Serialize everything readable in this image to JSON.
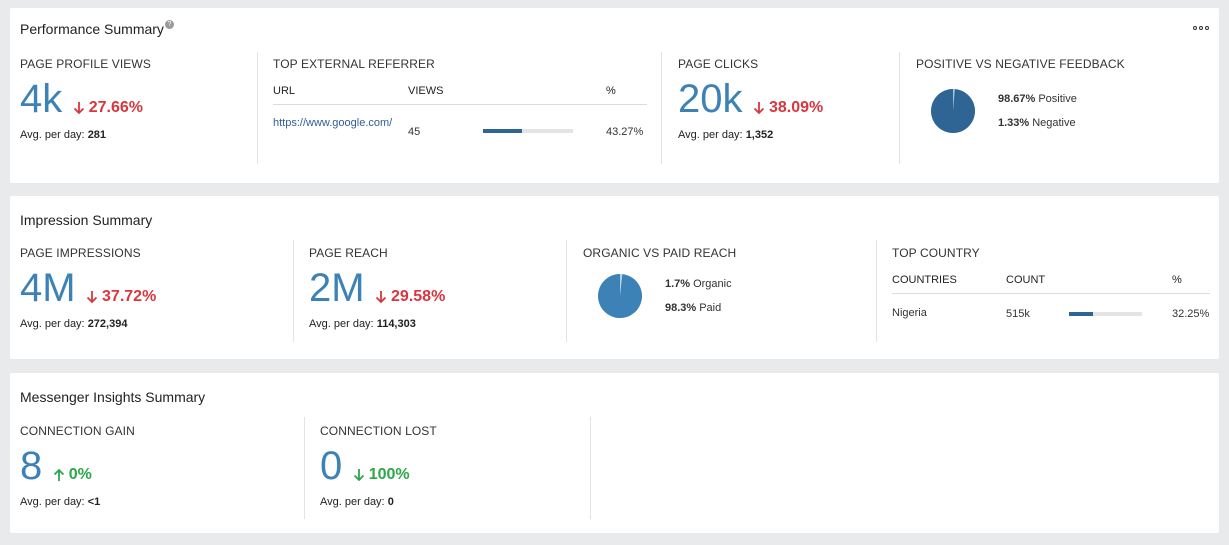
{
  "performance": {
    "title": "Performance Summary",
    "help_icon": "?",
    "more_icon": "more-options-icon",
    "page_profile_views": {
      "label": "PAGE PROFILE VIEWS",
      "value": "4k",
      "change": "27.66%",
      "avg_label": "Avg. per day:",
      "avg_value": "281"
    },
    "top_referrer": {
      "label": "TOP EXTERNAL REFERRER",
      "headers": {
        "url": "URL",
        "views": "VIEWS",
        "pct": "%"
      },
      "row": {
        "url": "https://www.google.com/",
        "views": "45",
        "pct": "43.27%",
        "bar_fraction": 0.4327
      }
    },
    "page_clicks": {
      "label": "PAGE CLICKS",
      "value": "20k",
      "change": "38.09%",
      "avg_label": "Avg. per day:",
      "avg_value": "1,352"
    },
    "feedback": {
      "label": "POSITIVE VS NEGATIVE FEEDBACK",
      "positive_pct": "98.67%",
      "positive_label": "Positive",
      "negative_pct": "1.33%",
      "negative_label": "Negative",
      "positive_fraction": 0.9867
    }
  },
  "impression": {
    "title": "Impression Summary",
    "page_impressions": {
      "label": "PAGE IMPRESSIONS",
      "value": "4M",
      "change": "37.72%",
      "avg_label": "Avg. per day:",
      "avg_value": "272,394"
    },
    "page_reach": {
      "label": "PAGE REACH",
      "value": "2M",
      "change": "29.58%",
      "avg_label": "Avg. per day:",
      "avg_value": "114,303"
    },
    "organic_paid": {
      "label": "ORGANIC VS PAID REACH",
      "organic_pct": "1.7%",
      "organic_label": "Organic",
      "paid_pct": "98.3%",
      "paid_label": "Paid",
      "paid_fraction": 0.983
    },
    "top_country": {
      "label": "TOP COUNTRY",
      "headers": {
        "country": "COUNTRIES",
        "count": "COUNT",
        "pct": "%"
      },
      "row": {
        "country": "Nigeria",
        "count": "515k",
        "pct": "32.25%",
        "bar_fraction": 0.3225
      }
    }
  },
  "messenger": {
    "title": "Messenger Insights Summary",
    "connection_gain": {
      "label": "CONNECTION GAIN",
      "value": "8",
      "change": "0%",
      "avg_label": "Avg. per day:",
      "avg_value": "<1"
    },
    "connection_lost": {
      "label": "CONNECTION LOST",
      "value": "0",
      "change": "100%",
      "avg_label": "Avg. per day:",
      "avg_value": "0"
    }
  },
  "colors": {
    "accent": "#3d82b7",
    "negative": "#d9363e",
    "positive": "#2ba748",
    "bar_fill": "#2e6594",
    "pie_feedback": "#2e6594",
    "pie_reach": "#3d82b7"
  }
}
